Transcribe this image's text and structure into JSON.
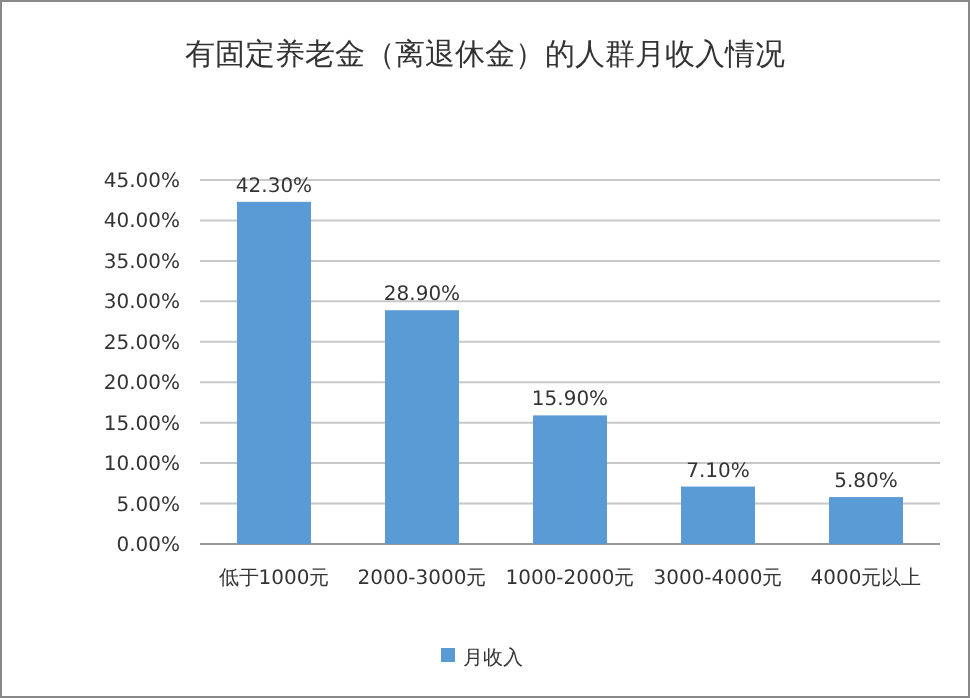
{
  "chart_data": {
    "type": "bar",
    "title": "有固定养老金（离退休金）的人群月收入情况",
    "categories": [
      "低于1000元",
      "2000-3000元",
      "1000-2000元",
      "3000-4000元",
      "4000元以上"
    ],
    "series": [
      {
        "name": "月收入",
        "color": "#5b9bd5",
        "values": [
          42.3,
          28.9,
          15.9,
          7.1,
          5.8
        ],
        "value_labels": [
          "42.30%",
          "28.90%",
          "15.90%",
          "7.10%",
          "5.80%"
        ]
      }
    ],
    "ylim": [
      0,
      45
    ],
    "yticks": [
      {
        "value": 0,
        "label": "0.00%"
      },
      {
        "value": 5,
        "label": "5.00%"
      },
      {
        "value": 10,
        "label": "10.00%"
      },
      {
        "value": 15,
        "label": "15.00%"
      },
      {
        "value": 20,
        "label": "20.00%"
      },
      {
        "value": 25,
        "label": "25.00%"
      },
      {
        "value": 30,
        "label": "30.00%"
      },
      {
        "value": 35,
        "label": "35.00%"
      },
      {
        "value": 40,
        "label": "40.00%"
      },
      {
        "value": 45,
        "label": "45.00%"
      }
    ],
    "grid": "y",
    "legend": "bottom"
  }
}
